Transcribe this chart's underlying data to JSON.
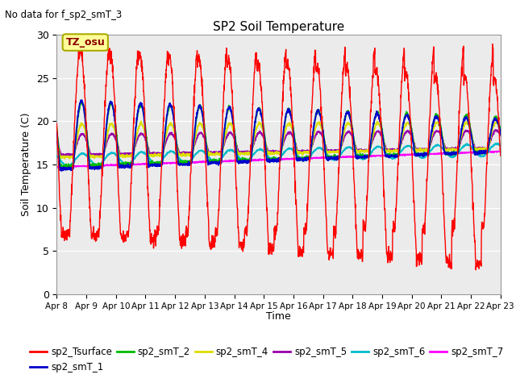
{
  "title": "SP2 Soil Temperature",
  "subtitle": "No data for f_sp2_smT_3",
  "ylabel": "Soil Temperature (C)",
  "xlabel": "Time",
  "tz_label": "TZ_osu",
  "ylim": [
    0,
    30
  ],
  "xlim": [
    0,
    15
  ],
  "background_color": "#ebebeb",
  "legend_entries": [
    {
      "label": "sp2_Tsurface",
      "color": "#ff0000"
    },
    {
      "label": "sp2_smT_1",
      "color": "#0000cc"
    },
    {
      "label": "sp2_smT_2",
      "color": "#00bb00"
    },
    {
      "label": "sp2_smT_4",
      "color": "#dddd00"
    },
    {
      "label": "sp2_smT_5",
      "color": "#9900aa"
    },
    {
      "label": "sp2_smT_6",
      "color": "#00bbcc"
    },
    {
      "label": "sp2_smT_7",
      "color": "#ff00ff"
    }
  ],
  "xtick_labels": [
    "Apr 8",
    "Apr 9",
    "Apr 10",
    "Apr 11",
    "Apr 12",
    "Apr 13",
    "Apr 14",
    "Apr 15",
    "Apr 16",
    "Apr 17",
    "Apr 18",
    "Apr 19",
    "Apr 20",
    "Apr 21",
    "Apr 22",
    "Apr 23"
  ],
  "ytick_labels": [
    "0",
    "5",
    "10",
    "15",
    "20",
    "25",
    "30"
  ],
  "num_days": 15
}
